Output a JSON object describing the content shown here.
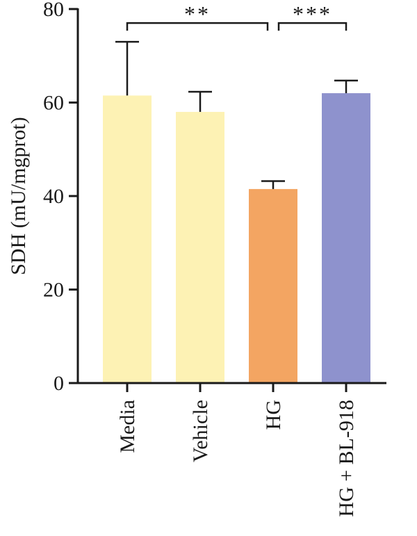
{
  "chart_data": {
    "type": "bar",
    "title": "",
    "xlabel": "",
    "ylabel": "SDH (mU/mgprot)",
    "ylim": [
      0,
      80
    ],
    "yticks": [
      0,
      20,
      40,
      60,
      80
    ],
    "categories": [
      "Media",
      "Vehicle",
      "HG",
      "HG + BL-918"
    ],
    "values": [
      61.5,
      58,
      41.5,
      62
    ],
    "errors": [
      11.5,
      4.3,
      1.7,
      2.7
    ],
    "colors": [
      "#FDF2B4",
      "#FDF2B4",
      "#F3A562",
      "#8E92CD"
    ],
    "significance": [
      {
        "from": 0,
        "to": 2,
        "label": "**",
        "y": 77
      },
      {
        "from": 2,
        "to": 3,
        "label": "***",
        "y": 77
      }
    ]
  }
}
